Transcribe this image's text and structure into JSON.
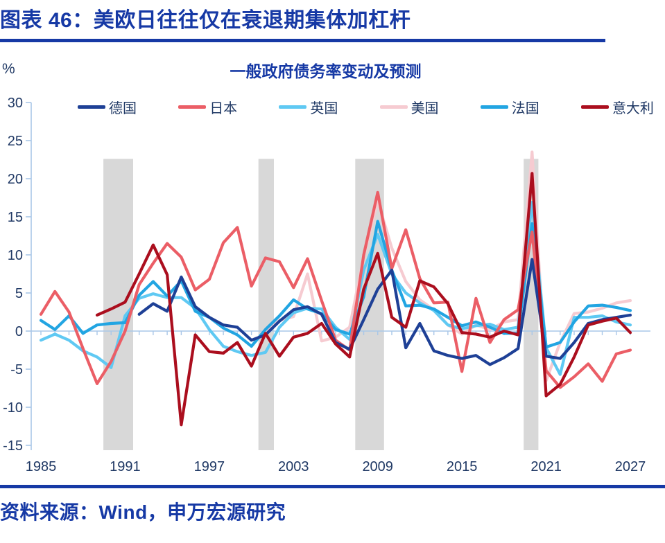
{
  "header": {
    "figure_title": "图表 46：美欧日往往仅在衰退期集体加杠杆"
  },
  "chart": {
    "title": "一般政府债务率变动及预测",
    "unit_label": "%"
  },
  "footer": {
    "source": "资料来源：Wind，申万宏源研究"
  },
  "colors": {
    "title_blue": "#1639A5",
    "text_blue": "#1F3864",
    "axis_blue": "#A9C7E8",
    "band_gray": "#D8D8D8",
    "background": "#FFFFFF"
  },
  "chart_data": {
    "type": "line",
    "title": "一般政府债务率变动及预测",
    "xlabel": "",
    "ylabel": "%",
    "xlim": [
      1985,
      2027
    ],
    "ylim": [
      -15,
      30
    ],
    "yticks": [
      30,
      25,
      20,
      15,
      10,
      5,
      0,
      -5,
      -10,
      -15
    ],
    "xtick_labels": [
      1985,
      1991,
      1997,
      2003,
      2009,
      2015,
      2021,
      2027
    ],
    "grid": false,
    "legend_position": "top",
    "band_value_top": 22.6,
    "band_value_bottom": -15.6,
    "recession_bands": [
      [
        1989.45,
        1991.57
      ],
      [
        2000.5,
        2001.6
      ],
      [
        2007.4,
        2009.45
      ],
      [
        2019.4,
        2020.45
      ]
    ],
    "years": [
      1985,
      1986,
      1987,
      1988,
      1989,
      1990,
      1991,
      1992,
      1993,
      1994,
      1995,
      1996,
      1997,
      1998,
      1999,
      2000,
      2001,
      2002,
      2003,
      2004,
      2005,
      2006,
      2007,
      2008,
      2009,
      2010,
      2011,
      2012,
      2013,
      2014,
      2015,
      2016,
      2017,
      2018,
      2019,
      2020,
      2021,
      2022,
      2023,
      2024,
      2025,
      2026,
      2027
    ],
    "series": [
      {
        "key": "us",
        "name": "美国",
        "color": "#F6CBD1",
        "values": [
          null,
          null,
          null,
          null,
          null,
          null,
          null,
          null,
          null,
          null,
          null,
          null,
          null,
          null,
          null,
          null,
          -0.2,
          1.4,
          1.9,
          7.5,
          -1.3,
          -0.8,
          0.5,
          9.8,
          17.1,
          10.9,
          6.5,
          4.1,
          2.8,
          0.8,
          -0.4,
          0.8,
          0.2,
          1.2,
          1.5,
          23.5,
          -6.5,
          -1.5,
          2.3,
          2.5,
          3.0,
          3.7,
          4.0
        ]
      },
      {
        "key": "uk",
        "name": "英国",
        "color": "#5FC9F3",
        "values": [
          -1.2,
          -0.4,
          -1.2,
          -2.6,
          -3.4,
          -4.8,
          2.0,
          4.3,
          4.9,
          4.4,
          4.4,
          3.0,
          0.2,
          -2.0,
          -2.7,
          -3.2,
          -2.8,
          0.5,
          2.4,
          3.0,
          2.9,
          0.5,
          -1.1,
          8.0,
          12.7,
          7.5,
          5.0,
          3.7,
          2.7,
          0.8,
          0.3,
          0.7,
          0.9,
          0.2,
          0.5,
          16.9,
          -2.2,
          -5.7,
          1.8,
          1.8,
          2.0,
          1.2,
          0.8
        ]
      },
      {
        "key": "france",
        "name": "法国",
        "color": "#22A5E2",
        "values": [
          1.4,
          0.2,
          2.0,
          -0.3,
          0.8,
          1.0,
          1.1,
          4.7,
          6.5,
          4.6,
          6.6,
          2.6,
          1.8,
          0.4,
          -0.5,
          -2.0,
          0.2,
          2.0,
          4.1,
          2.9,
          2.3,
          0.2,
          -0.4,
          4.5,
          14.4,
          8.0,
          3.3,
          3.4,
          2.9,
          1.8,
          0.7,
          1.2,
          0.5,
          -0.3,
          -0.3,
          14.1,
          -2.1,
          -1.5,
          1.2,
          3.3,
          3.4,
          3.1,
          2.7
        ]
      },
      {
        "key": "japan",
        "name": "日本",
        "color": "#EB5E66",
        "values": [
          2.2,
          5.2,
          2.5,
          -2.3,
          -6.9,
          -4.0,
          0.0,
          6.1,
          8.9,
          11.5,
          9.7,
          5.4,
          6.8,
          11.6,
          13.6,
          5.9,
          9.6,
          9.1,
          5.7,
          9.5,
          4.0,
          -1.2,
          -2.5,
          10.0,
          18.2,
          8.2,
          13.3,
          6.9,
          3.7,
          3.8,
          -5.3,
          4.3,
          -1.5,
          1.5,
          2.8,
          13.0,
          -5.2,
          -7.4,
          -6.0,
          -4.3,
          -6.6,
          -3.0,
          -2.5
        ]
      },
      {
        "key": "germany",
        "name": "德国",
        "color": "#1E4096",
        "values": [
          null,
          null,
          null,
          null,
          null,
          null,
          null,
          2.2,
          3.6,
          2.6,
          7.1,
          3.2,
          1.8,
          0.8,
          0.5,
          -1.2,
          -0.5,
          1.3,
          2.8,
          3.2,
          2.2,
          -1.5,
          -2.4,
          1.5,
          5.5,
          8.0,
          -2.2,
          1.0,
          -2.6,
          -3.2,
          -3.6,
          -3.2,
          -4.4,
          -3.5,
          -2.3,
          9.4,
          -3.3,
          -3.6,
          -1.5,
          1.0,
          1.5,
          1.8,
          2.1
        ]
      },
      {
        "key": "italy",
        "name": "意大利",
        "color": "#AB0E1E",
        "values": [
          null,
          null,
          null,
          null,
          2.1,
          2.9,
          3.8,
          7.5,
          11.3,
          7.4,
          -12.3,
          -0.5,
          -2.7,
          -2.9,
          -1.5,
          -4.6,
          -0.3,
          -3.3,
          -0.8,
          -0.3,
          1.0,
          -1.7,
          -3.4,
          5.5,
          10.2,
          1.8,
          0.5,
          6.6,
          5.8,
          3.6,
          -0.2,
          -0.4,
          -0.8,
          0.0,
          -0.5,
          20.7,
          -8.5,
          -7.0,
          -3.4,
          0.8,
          1.3,
          1.7,
          -0.2
        ]
      }
    ],
    "legend_order": [
      "germany",
      "japan",
      "uk",
      "us",
      "france",
      "italy"
    ]
  }
}
